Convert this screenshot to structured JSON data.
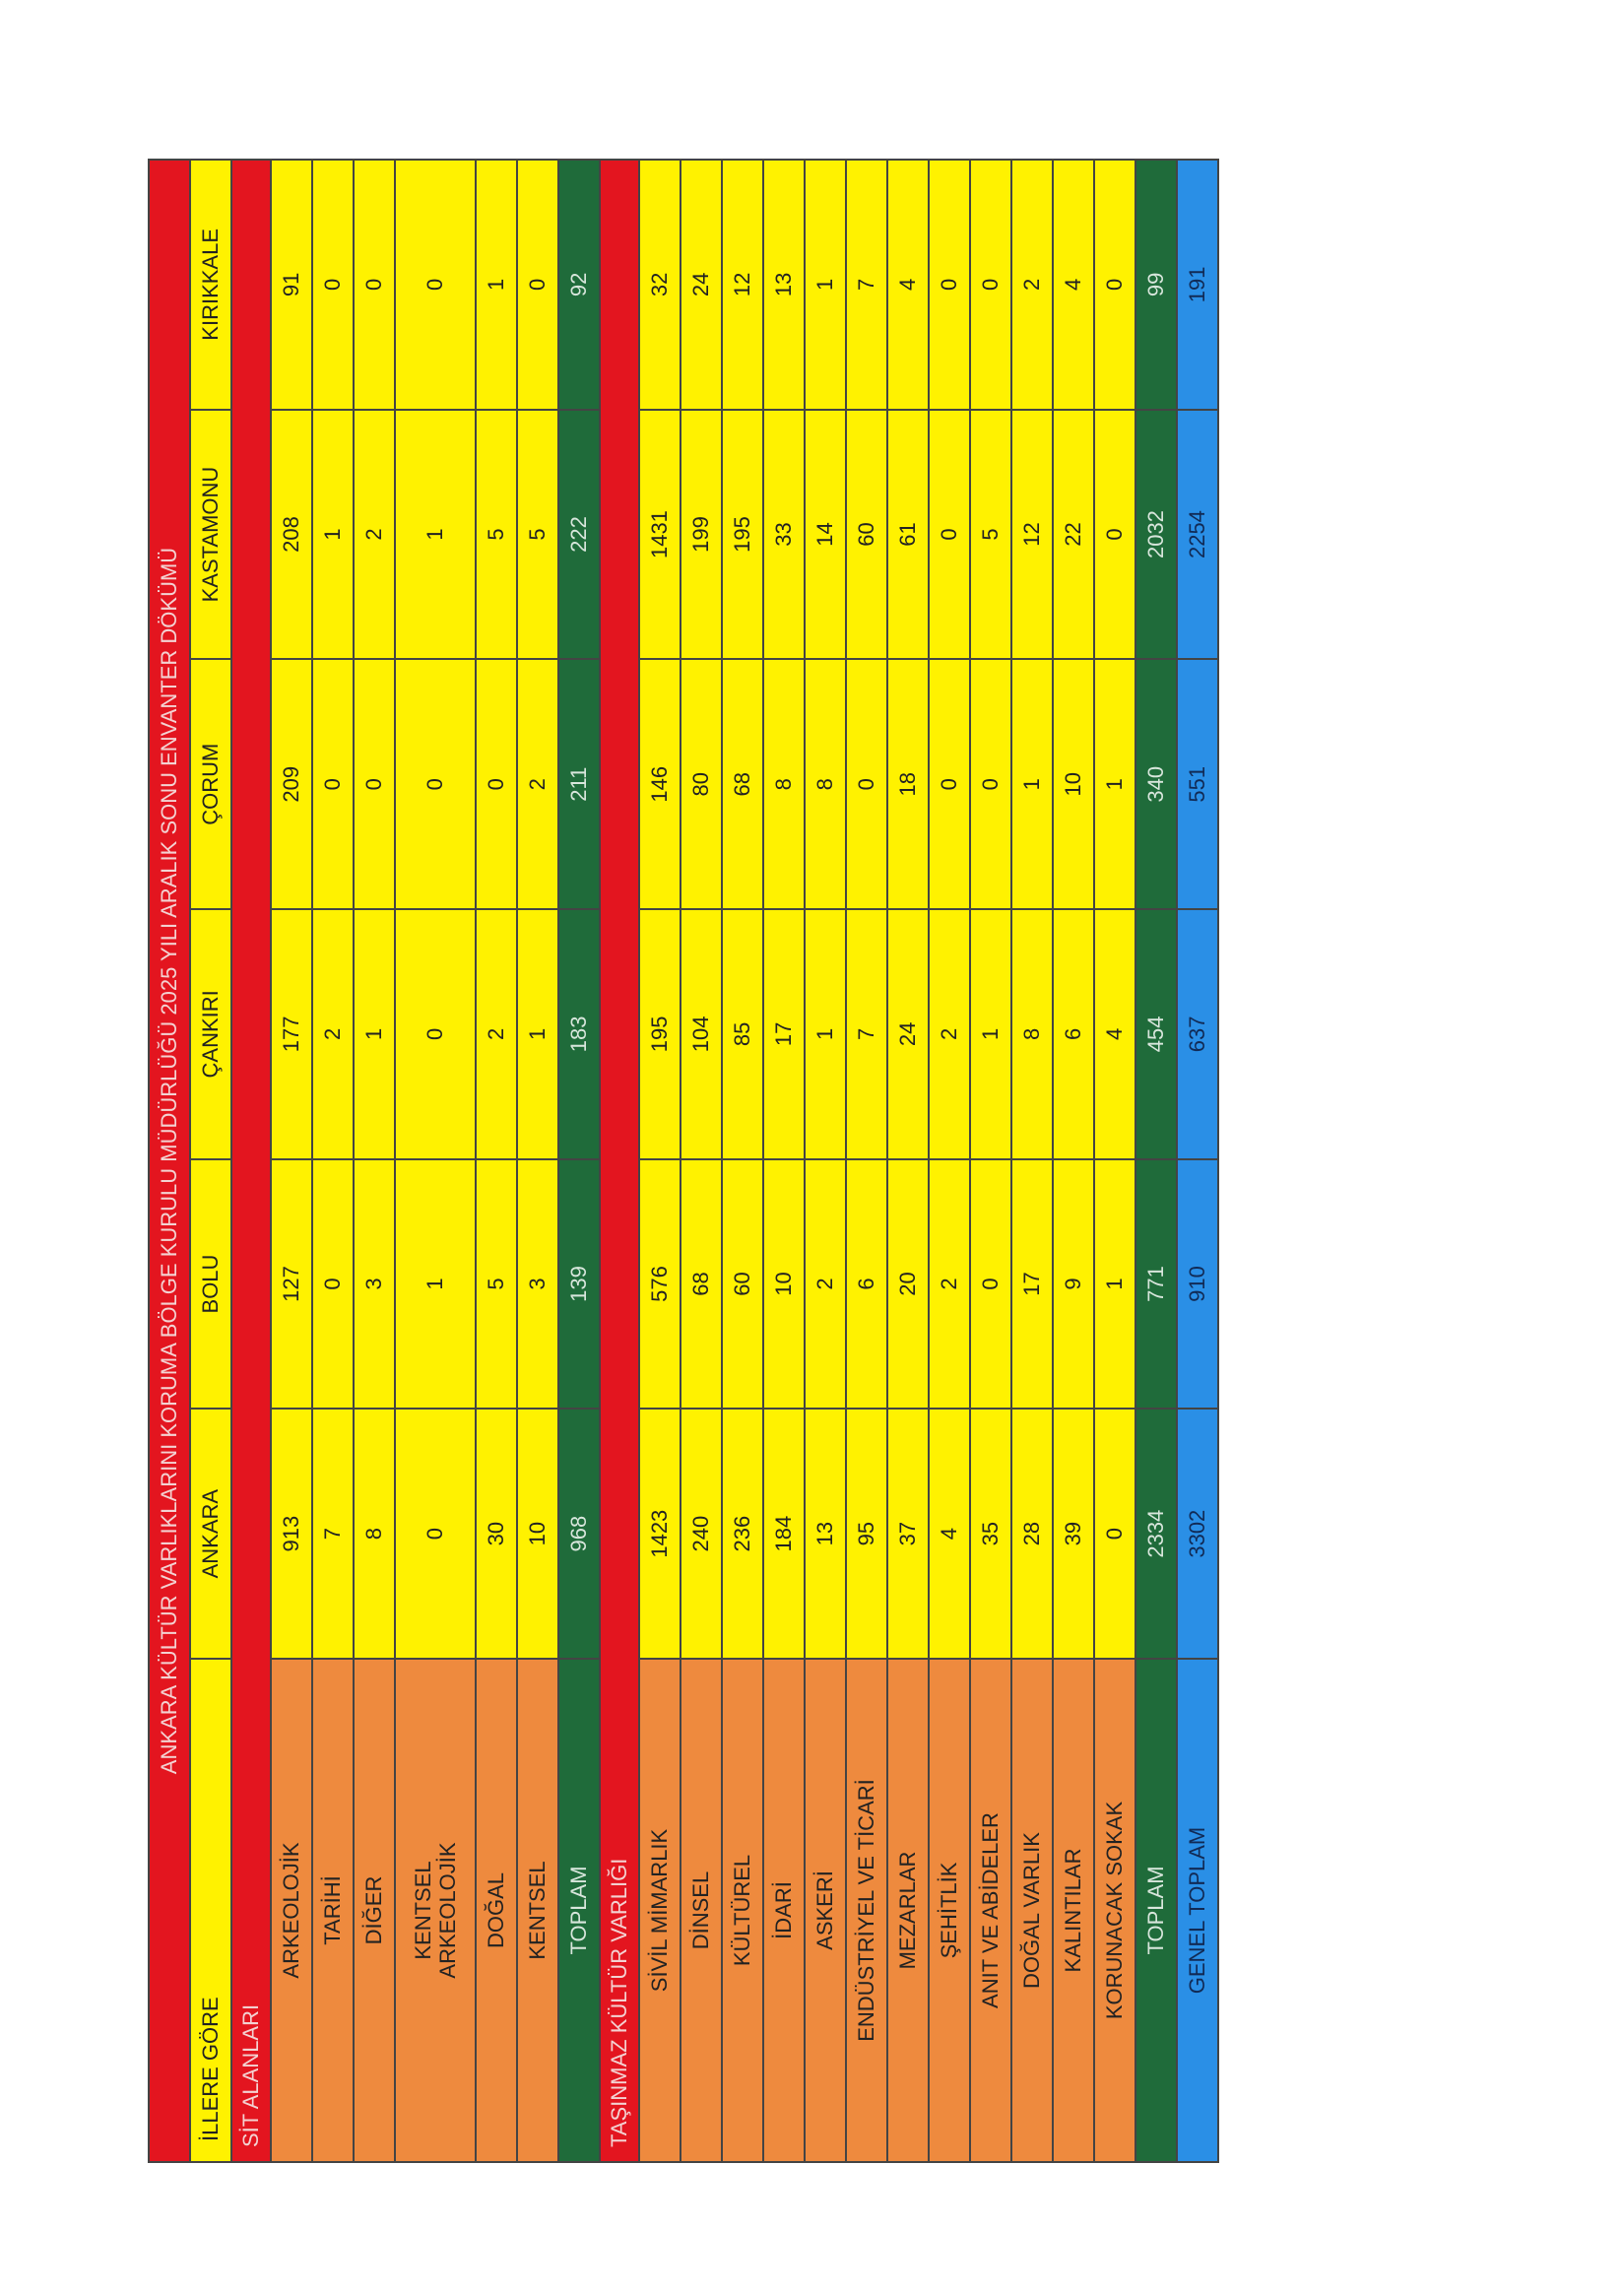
{
  "title": "ANKARA KÜLTÜR VARLIKLARINI KORUMA BÖLGE KURULU MÜDÜRLÜĞÜ 2025 YILI ARALIK SONU ENVANTER DÖKÜMÜ",
  "header": [
    "İLLERE GÖRE",
    "ANKARA",
    "BOLU",
    "ÇANKIRI",
    "ÇORUM",
    "KASTAMONU",
    "KIRIKKALE"
  ],
  "sections": [
    {
      "title": "SİT ALANLARI",
      "rows": [
        {
          "label": "ARKEOLOJİK",
          "values": [
            913,
            127,
            177,
            209,
            208,
            91
          ]
        },
        {
          "label": "TARİHİ",
          "values": [
            7,
            0,
            2,
            0,
            1,
            0
          ]
        },
        {
          "label": "DİĞER",
          "values": [
            8,
            3,
            1,
            0,
            2,
            0
          ]
        },
        {
          "label": "KENTSEL\nARKEOLOJİK",
          "values": [
            0,
            1,
            0,
            0,
            1,
            0
          ]
        },
        {
          "label": "DOĞAL",
          "values": [
            30,
            5,
            2,
            0,
            5,
            1
          ]
        },
        {
          "label": "KENTSEL",
          "values": [
            10,
            3,
            1,
            2,
            5,
            0
          ]
        }
      ],
      "total": {
        "label": "TOPLAM",
        "values": [
          968,
          139,
          183,
          211,
          222,
          92
        ]
      }
    },
    {
      "title": "TAŞINMAZ KÜLTÜR VARLIĞI",
      "rows": [
        {
          "label": "SİVİL MİMARLIK",
          "values": [
            1423,
            576,
            195,
            146,
            1431,
            32
          ]
        },
        {
          "label": "DİNSEL",
          "values": [
            240,
            68,
            104,
            80,
            199,
            24
          ]
        },
        {
          "label": "KÜLTÜREL",
          "values": [
            236,
            60,
            85,
            68,
            195,
            12
          ]
        },
        {
          "label": "İDARİ",
          "values": [
            184,
            10,
            17,
            8,
            33,
            13
          ]
        },
        {
          "label": "ASKERİ",
          "values": [
            13,
            2,
            1,
            8,
            14,
            1
          ]
        },
        {
          "label": "ENDÜSTRİYEL VE TİCARİ",
          "values": [
            95,
            6,
            7,
            0,
            60,
            7
          ]
        },
        {
          "label": "MEZARLAR",
          "values": [
            37,
            20,
            24,
            18,
            61,
            4
          ]
        },
        {
          "label": "ŞEHİTLİK",
          "values": [
            4,
            2,
            2,
            0,
            0,
            0
          ]
        },
        {
          "label": "ANIT VE ABİDELER",
          "values": [
            35,
            0,
            1,
            0,
            5,
            0
          ]
        },
        {
          "label": "DOĞAL VARLIK",
          "values": [
            28,
            17,
            8,
            1,
            12,
            2
          ]
        },
        {
          "label": "KALINTILAR",
          "values": [
            39,
            9,
            6,
            10,
            22,
            4
          ]
        },
        {
          "label": "KORUNACAK SOKAK",
          "values": [
            0,
            1,
            4,
            1,
            0,
            0
          ]
        }
      ],
      "total": {
        "label": "TOPLAM",
        "values": [
          2334,
          771,
          454,
          340,
          2032,
          99
        ]
      }
    }
  ],
  "grand_total": {
    "label": "GENEL TOPLAM",
    "values": [
      3302,
      910,
      637,
      551,
      2254,
      191
    ]
  }
}
